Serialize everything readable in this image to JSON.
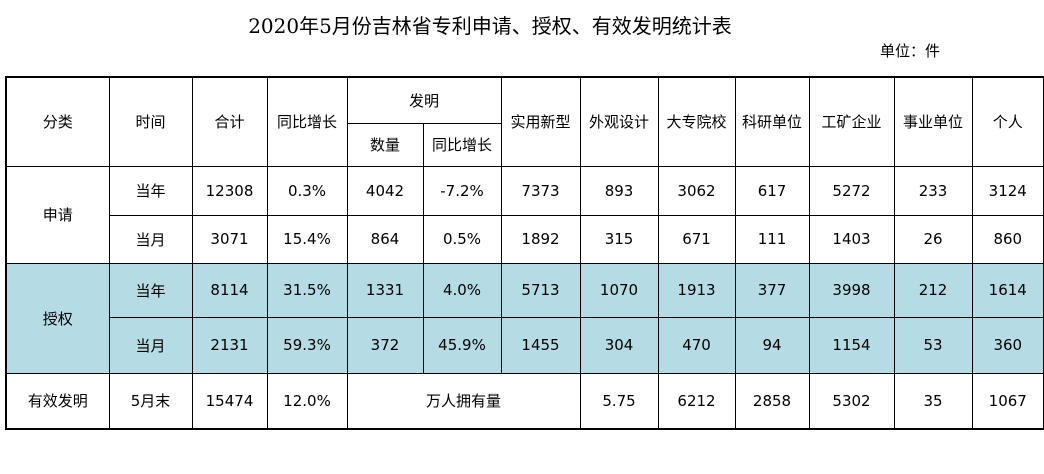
{
  "title": "2020年5月份吉林省专利申请、授权、有效发明统计表",
  "unit": "单位：件",
  "header": {
    "category": "分类",
    "time": "时间",
    "total": "合计",
    "yoy": "同比增长",
    "invention": "发明",
    "inv_count": "数量",
    "inv_yoy": "同比增长",
    "utility": "实用新型",
    "design": "外观设计",
    "college": "大专院校",
    "research": "科研单位",
    "enterprise": "工矿企业",
    "institution": "事业单位",
    "individual": "个人"
  },
  "application": {
    "label": "申请",
    "year": {
      "time": "当年",
      "total": "12308",
      "yoy": "0.3%",
      "inv_count": "4042",
      "inv_yoy": "-7.2%",
      "utility": "7373",
      "design": "893",
      "college": "3062",
      "research": "617",
      "enterprise": "5272",
      "institution": "233",
      "individual": "3124"
    },
    "month": {
      "time": "当月",
      "total": "3071",
      "yoy": "15.4%",
      "inv_count": "864",
      "inv_yoy": "0.5%",
      "utility": "1892",
      "design": "315",
      "college": "671",
      "research": "111",
      "enterprise": "1403",
      "institution": "26",
      "individual": "860"
    }
  },
  "grant": {
    "label": "授权",
    "year": {
      "time": "当年",
      "total": "8114",
      "yoy": "31.5%",
      "inv_count": "1331",
      "inv_yoy": "4.0%",
      "utility": "5713",
      "design": "1070",
      "college": "1913",
      "research": "377",
      "enterprise": "3998",
      "institution": "212",
      "individual": "1614"
    },
    "month": {
      "time": "当月",
      "total": "2131",
      "yoy": "59.3%",
      "inv_count": "372",
      "inv_yoy": "45.9%",
      "utility": "1455",
      "design": "304",
      "college": "470",
      "research": "94",
      "enterprise": "1154",
      "institution": "53",
      "individual": "360"
    }
  },
  "valid": {
    "label": "有效发明",
    "time": "5月末",
    "total": "15474",
    "yoy": "12.0%",
    "per_10k_label": "万人拥有量",
    "per_10k_value": "5.75",
    "college": "6212",
    "research": "2858",
    "enterprise": "5302",
    "institution": "35",
    "individual": "1067"
  }
}
